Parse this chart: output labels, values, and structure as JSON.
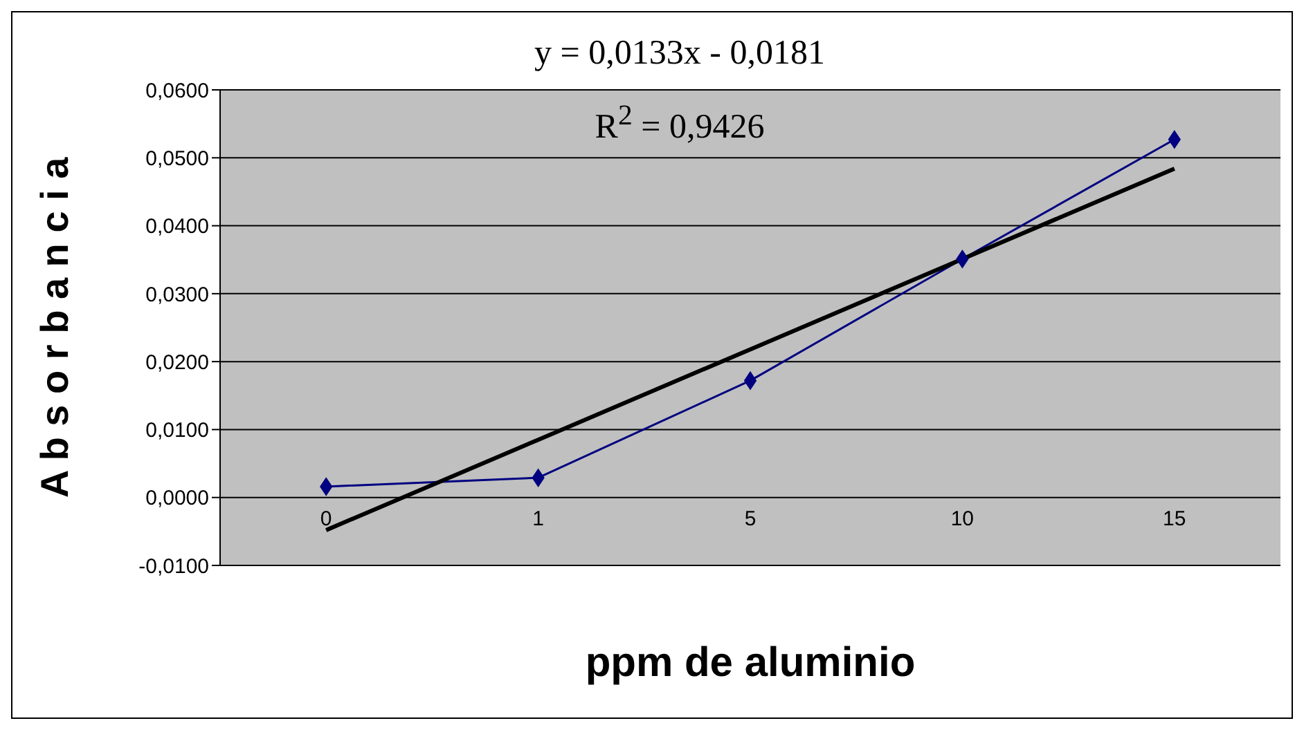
{
  "chart_data": {
    "type": "line",
    "xlabel": "ppm de aluminio",
    "ylabel": "A b s o r b a n c i a",
    "categories": [
      "0",
      "1",
      "5",
      "10",
      "15"
    ],
    "series": [
      {
        "color": "#000080",
        "values": [
          0.0016,
          0.0029,
          0.0172,
          0.0351,
          0.0527
        ],
        "marker": "diamond"
      },
      {
        "color": "#000000",
        "values": [
          -0.0048,
          0.0085,
          0.0218,
          0.0351,
          0.0484
        ],
        "marker": "none"
      }
    ],
    "ylim": [
      -0.01,
      0.06
    ],
    "yticks": [
      {
        "value": -0.01,
        "label": "-0,0100"
      },
      {
        "value": 0,
        "label": "0,0000"
      },
      {
        "value": 0.01,
        "label": "0,0100"
      },
      {
        "value": 0.02,
        "label": "0,0200"
      },
      {
        "value": 0.03,
        "label": "0,0300"
      },
      {
        "value": 0.04,
        "label": "0,0400"
      },
      {
        "value": 0.05,
        "label": "0,0500"
      },
      {
        "value": 0.06,
        "label": "0,0600"
      }
    ],
    "grid": "y",
    "annotations": [
      "y = 0,0133x - 0,0181",
      "R$^{2}$ = 0,9426"
    ]
  }
}
